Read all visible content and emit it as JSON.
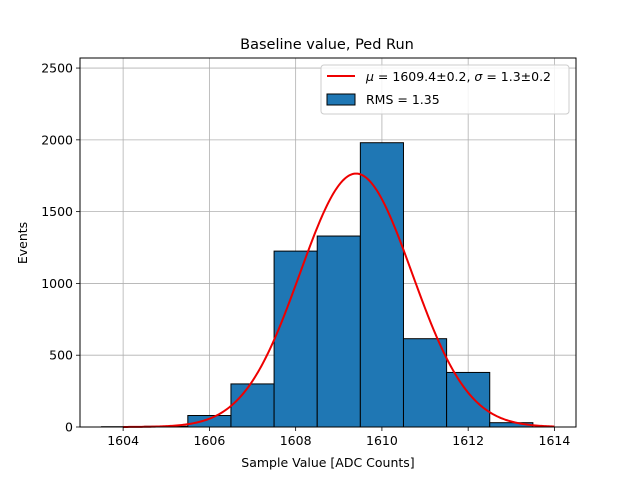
{
  "chart_data": {
    "type": "bar",
    "title": "Baseline value, Ped Run",
    "xlabel": "Sample Value [ADC Counts]",
    "ylabel": "Events",
    "xlim": [
      1603,
      1614.5
    ],
    "ylim": [
      0,
      2570
    ],
    "x_ticks": [
      1604,
      1606,
      1608,
      1610,
      1612,
      1614
    ],
    "y_ticks": [
      0,
      500,
      1000,
      1500,
      2000,
      2500
    ],
    "grid": true,
    "legend_position": "top-right",
    "histogram": {
      "name": "RMS = 1.35",
      "color": "#1f77b4",
      "edge_color": "#000000",
      "bin_edges": [
        1603.5,
        1604.5,
        1605.5,
        1606.5,
        1607.5,
        1608.5,
        1609.5,
        1610.5,
        1611.5,
        1612.5,
        1613.5
      ],
      "counts": [
        2,
        5,
        80,
        300,
        1225,
        1330,
        1980,
        615,
        380,
        30
      ]
    },
    "fit": {
      "name": "μ = 1609.4±0.2, σ = 1.3±0.2",
      "name_parts": {
        "mu_sym": "μ",
        "mu_val": " = 1609.4±0.2, ",
        "sigma_sym": "σ",
        "sigma_val": " = 1.3±0.2"
      },
      "color": "#ee0000",
      "type": "gaussian",
      "amplitude": 1765,
      "mu": 1609.4,
      "sigma": 1.3,
      "x_range": [
        1604,
        1614
      ]
    }
  }
}
